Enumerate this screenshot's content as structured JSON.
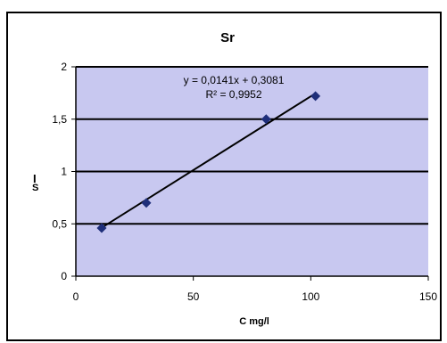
{
  "chart_data": {
    "type": "scatter",
    "title": "Sr",
    "xlabel": "C mg/l",
    "ylabel": "I_S",
    "xlim": [
      0,
      150
    ],
    "ylim": [
      0,
      2
    ],
    "x_ticks": [
      0,
      50,
      100,
      150
    ],
    "y_ticks": [
      0,
      0.5,
      1,
      1.5,
      2
    ],
    "x_tick_labels": [
      "0",
      "50",
      "100",
      "150"
    ],
    "y_tick_labels": [
      "0",
      "0,5",
      "1",
      "1,5",
      "2"
    ],
    "grid": "horizontal",
    "legend": "none",
    "series": [
      {
        "name": "",
        "marker": "diamond",
        "color": "#1f2f7a",
        "points": [
          {
            "x": 11,
            "y": 0.46
          },
          {
            "x": 30,
            "y": 0.7
          },
          {
            "x": 81,
            "y": 1.5
          },
          {
            "x": 102,
            "y": 1.72
          }
        ]
      }
    ],
    "trendline": {
      "type": "linear",
      "slope": 0.0141,
      "intercept": 0.3081,
      "x_range": [
        11,
        102
      ],
      "equation_label": "y = 0,0141x + 0,3081",
      "r2_label": "R² = 0,9952",
      "color": "#000000"
    },
    "colors": {
      "plot_background": "#c8c8f0",
      "chart_background": "#ffffff",
      "gridline": "#000000",
      "marker": "#1f2f7a"
    }
  }
}
